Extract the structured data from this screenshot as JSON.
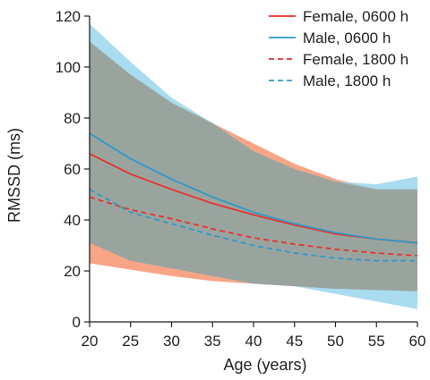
{
  "chart_data": {
    "type": "line",
    "title": "",
    "xlabel": "Age (years)",
    "ylabel": "RMSSD (ms)",
    "xlim": [
      20,
      60
    ],
    "ylim": [
      0,
      120
    ],
    "xticks": [
      20,
      25,
      30,
      35,
      40,
      45,
      50,
      55,
      60
    ],
    "yticks": [
      0,
      20,
      40,
      60,
      80,
      100,
      120
    ],
    "grid": false,
    "legend_position": "top-right",
    "x": [
      20,
      25,
      30,
      35,
      40,
      45,
      50,
      55,
      60
    ],
    "series": [
      {
        "name": "Female, 0600 h",
        "color": "#e8322b",
        "dash": "solid",
        "values": [
          66,
          58,
          52,
          46.5,
          42,
          38,
          34.5,
          32.5,
          31
        ]
      },
      {
        "name": "Male, 0600 h",
        "color": "#2e9ac7",
        "dash": "solid",
        "values": [
          74,
          64,
          56,
          49,
          43,
          38.5,
          35,
          32.5,
          31
        ]
      },
      {
        "name": "Female, 1800 h",
        "color": "#e8322b",
        "dash": "dashed",
        "values": [
          49,
          44,
          40.5,
          36.5,
          33,
          30.5,
          28.5,
          27,
          26
        ]
      },
      {
        "name": "Male, 1800 h",
        "color": "#2e9ac7",
        "dash": "dashed",
        "values": [
          52,
          43,
          38.5,
          34,
          30,
          27,
          25,
          24,
          24
        ]
      }
    ],
    "bands": [
      {
        "color": "#f7a585",
        "upper": [
          110,
          97,
          86,
          78,
          70,
          62,
          56,
          52,
          52
        ],
        "lower": [
          23,
          20.5,
          18,
          16,
          15,
          14,
          13,
          12.5,
          12
        ]
      },
      {
        "color": "#8cd0ea",
        "upper": [
          117,
          102,
          88,
          78,
          67,
          60,
          55,
          54,
          57
        ],
        "lower": [
          31,
          24,
          21,
          18,
          15,
          14,
          11,
          8,
          5
        ]
      }
    ]
  }
}
